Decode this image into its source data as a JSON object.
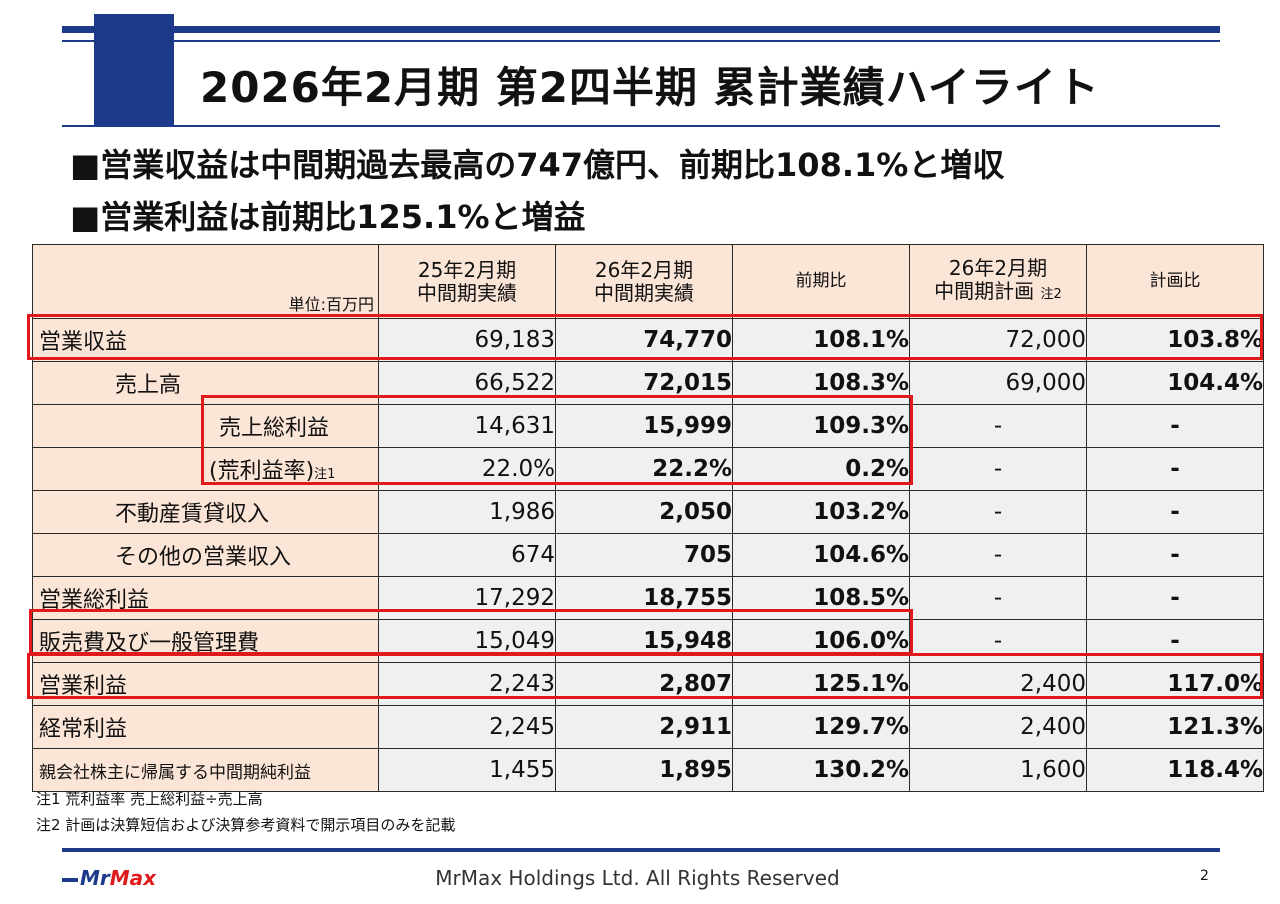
{
  "title": "2026年2月期  第2四半期  累計業績ハイライト",
  "bullets": [
    "■営業収益は中間期過去最高の747億円、前期比108.1%と増収",
    "■営業利益は前期比125.1%と増益"
  ],
  "table": {
    "unit": "単位:百万円",
    "headers": {
      "prev_line1": "25年2月期",
      "prev_line2": "中間期実績",
      "curr_line1": "26年2月期",
      "curr_line2": "中間期実績",
      "yoy": "前期比",
      "plan_line1": "26年2月期",
      "plan_line2": "中間期計画",
      "plan_note": "注2",
      "vs_plan": "計画比"
    },
    "rows": [
      {
        "label": "営業収益",
        "prev": "69,183",
        "curr": "74,770",
        "yoy": "108.1%",
        "plan": "72,000",
        "vs_plan": "103.8%"
      },
      {
        "label": "売上高",
        "prev": "66,522",
        "curr": "72,015",
        "yoy": "108.3%",
        "plan": "69,000",
        "vs_plan": "104.4%"
      },
      {
        "label": "売上総利益",
        "prev": "14,631",
        "curr": "15,999",
        "yoy": "109.3%",
        "plan": "-",
        "vs_plan": "-"
      },
      {
        "label": "(荒利益率)",
        "note": "注1",
        "prev": "22.0%",
        "curr": "22.2%",
        "yoy": "0.2%",
        "plan": "-",
        "vs_plan": "-"
      },
      {
        "label": "不動産賃貸収入",
        "prev": "1,986",
        "curr": "2,050",
        "yoy": "103.2%",
        "plan": "-",
        "vs_plan": "-"
      },
      {
        "label": "その他の営業収入",
        "prev": "674",
        "curr": "705",
        "yoy": "104.6%",
        "plan": "-",
        "vs_plan": "-"
      },
      {
        "label": "営業総利益",
        "prev": "17,292",
        "curr": "18,755",
        "yoy": "108.5%",
        "plan": "-",
        "vs_plan": "-"
      },
      {
        "label": "販売費及び一般管理費",
        "prev": "15,049",
        "curr": "15,948",
        "yoy": "106.0%",
        "plan": "-",
        "vs_plan": "-"
      },
      {
        "label": "営業利益",
        "prev": "2,243",
        "curr": "2,807",
        "yoy": "125.1%",
        "plan": "2,400",
        "vs_plan": "117.0%"
      },
      {
        "label": "経常利益",
        "prev": "2,245",
        "curr": "2,911",
        "yoy": "129.7%",
        "plan": "2,400",
        "vs_plan": "121.3%"
      },
      {
        "label": "親会社株主に帰属する中間期純利益",
        "prev": "1,455",
        "curr": "1,895",
        "yoy": "130.2%",
        "plan": "1,600",
        "vs_plan": "118.4%"
      }
    ]
  },
  "notes": [
    "注1 荒利益率  売上総利益÷売上高",
    "注2 計画は決算短信および決算参考資料で開示項目のみを記載"
  ],
  "footer": {
    "logo_mr": "Mr",
    "logo_max": "Max",
    "copyright": "MrMax Holdings Ltd. All Rights Reserved",
    "page_number": "2"
  },
  "colors": {
    "accent_blue": "#1d3a8a",
    "highlight_red": "#e0191c",
    "label_bg": "#fbe5d6",
    "cell_bg": "#f0f0f0"
  }
}
